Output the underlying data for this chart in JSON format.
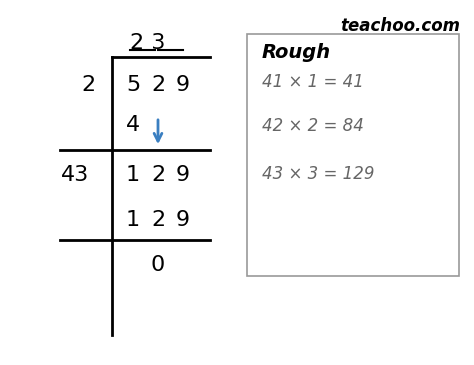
{
  "title_text": "teachoo.com",
  "bg_color": "#ffffff",
  "line_color": "#000000",
  "arrow_color": "#3a7fc1",
  "rough_text_color": "#666666",
  "rough_title": "Rough",
  "rough_line1": "41 × 1 = 41",
  "rough_line2": "42 × 2 = 84",
  "rough_line3": "43 × 3 = 129"
}
